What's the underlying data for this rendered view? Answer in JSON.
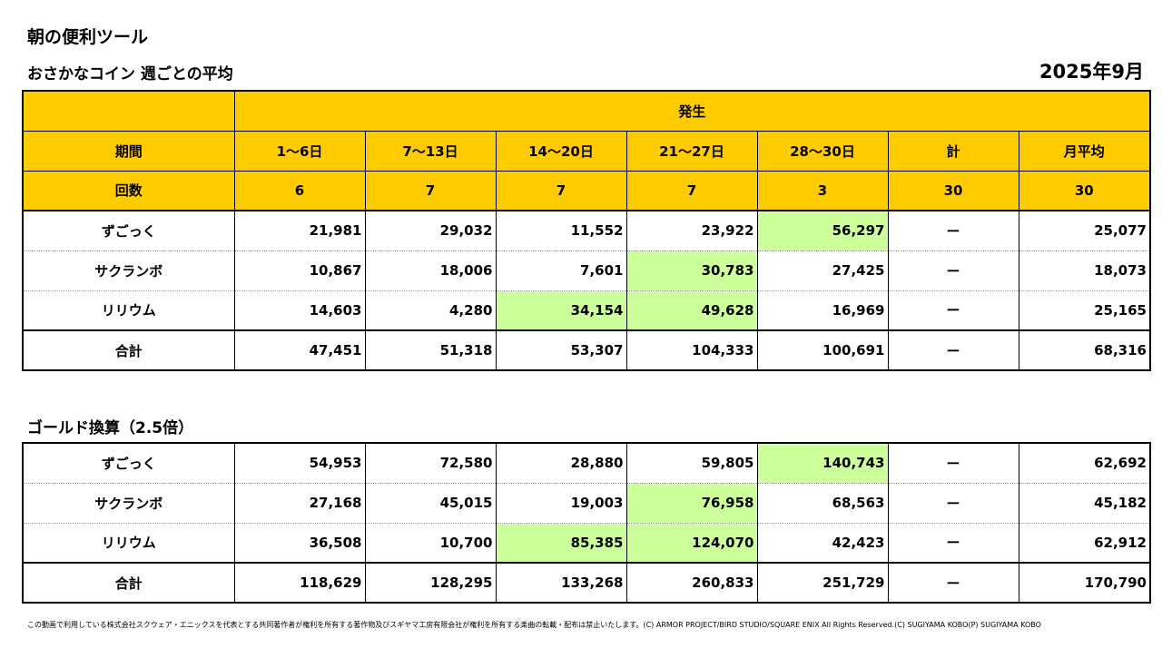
{
  "page": {
    "title": "朝の便利ツール",
    "subtitle": "おさかなコイン 週ごとの平均",
    "month": "2025年9月",
    "section2_title": "ゴールド換算（2.5倍）",
    "footer": "この動画で利用している株式会社スクウェア・エニックスを代表とする共同著作者が権利を所有する著作物及びスギヤマ工房有限会社が権利を所有する楽曲の転載・配布は禁止いたします。(C) ARMOR PROJECT/BIRD STUDIO/SQUARE ENIX All Rights Reserved.(C) SUGIYAMA KOBO(P) SUGIYAMA KOBO"
  },
  "colors": {
    "header_bg": "#ffcc00",
    "highlight_bg": "#ccff99"
  },
  "table1": {
    "header_span": "発生",
    "period_label": "期間",
    "periods": [
      "1～6日",
      "7～13日",
      "14～20日",
      "21～27日",
      "28～30日",
      "計",
      "月平均"
    ],
    "count_label": "回数",
    "counts": [
      "6",
      "7",
      "7",
      "7",
      "3",
      "30",
      "30"
    ],
    "rows": [
      {
        "name": "ずごっく",
        "values": [
          "21,981",
          "29,032",
          "11,552",
          "23,922",
          "56,297",
          "ー",
          "25,077"
        ],
        "highlight": [
          4
        ]
      },
      {
        "name": "サクランボ",
        "values": [
          "10,867",
          "18,006",
          "7,601",
          "30,783",
          "27,425",
          "ー",
          "18,073"
        ],
        "highlight": [
          3
        ]
      },
      {
        "name": "リリウム",
        "values": [
          "14,603",
          "4,280",
          "34,154",
          "49,628",
          "16,969",
          "ー",
          "25,165"
        ],
        "highlight": [
          2,
          3
        ]
      },
      {
        "name": "合計",
        "values": [
          "47,451",
          "51,318",
          "53,307",
          "104,333",
          "100,691",
          "ー",
          "68,316"
        ],
        "highlight": []
      }
    ]
  },
  "table2": {
    "rows": [
      {
        "name": "ずごっく",
        "values": [
          "54,953",
          "72,580",
          "28,880",
          "59,805",
          "140,743",
          "ー",
          "62,692"
        ],
        "highlight": [
          4
        ]
      },
      {
        "name": "サクランボ",
        "values": [
          "27,168",
          "45,015",
          "19,003",
          "76,958",
          "68,563",
          "ー",
          "45,182"
        ],
        "highlight": [
          3
        ]
      },
      {
        "name": "リリウム",
        "values": [
          "36,508",
          "10,700",
          "85,385",
          "124,070",
          "42,423",
          "ー",
          "62,912"
        ],
        "highlight": [
          2,
          3
        ]
      },
      {
        "name": "合計",
        "values": [
          "118,629",
          "128,295",
          "133,268",
          "260,833",
          "251,729",
          "ー",
          "170,790"
        ],
        "highlight": []
      }
    ]
  }
}
